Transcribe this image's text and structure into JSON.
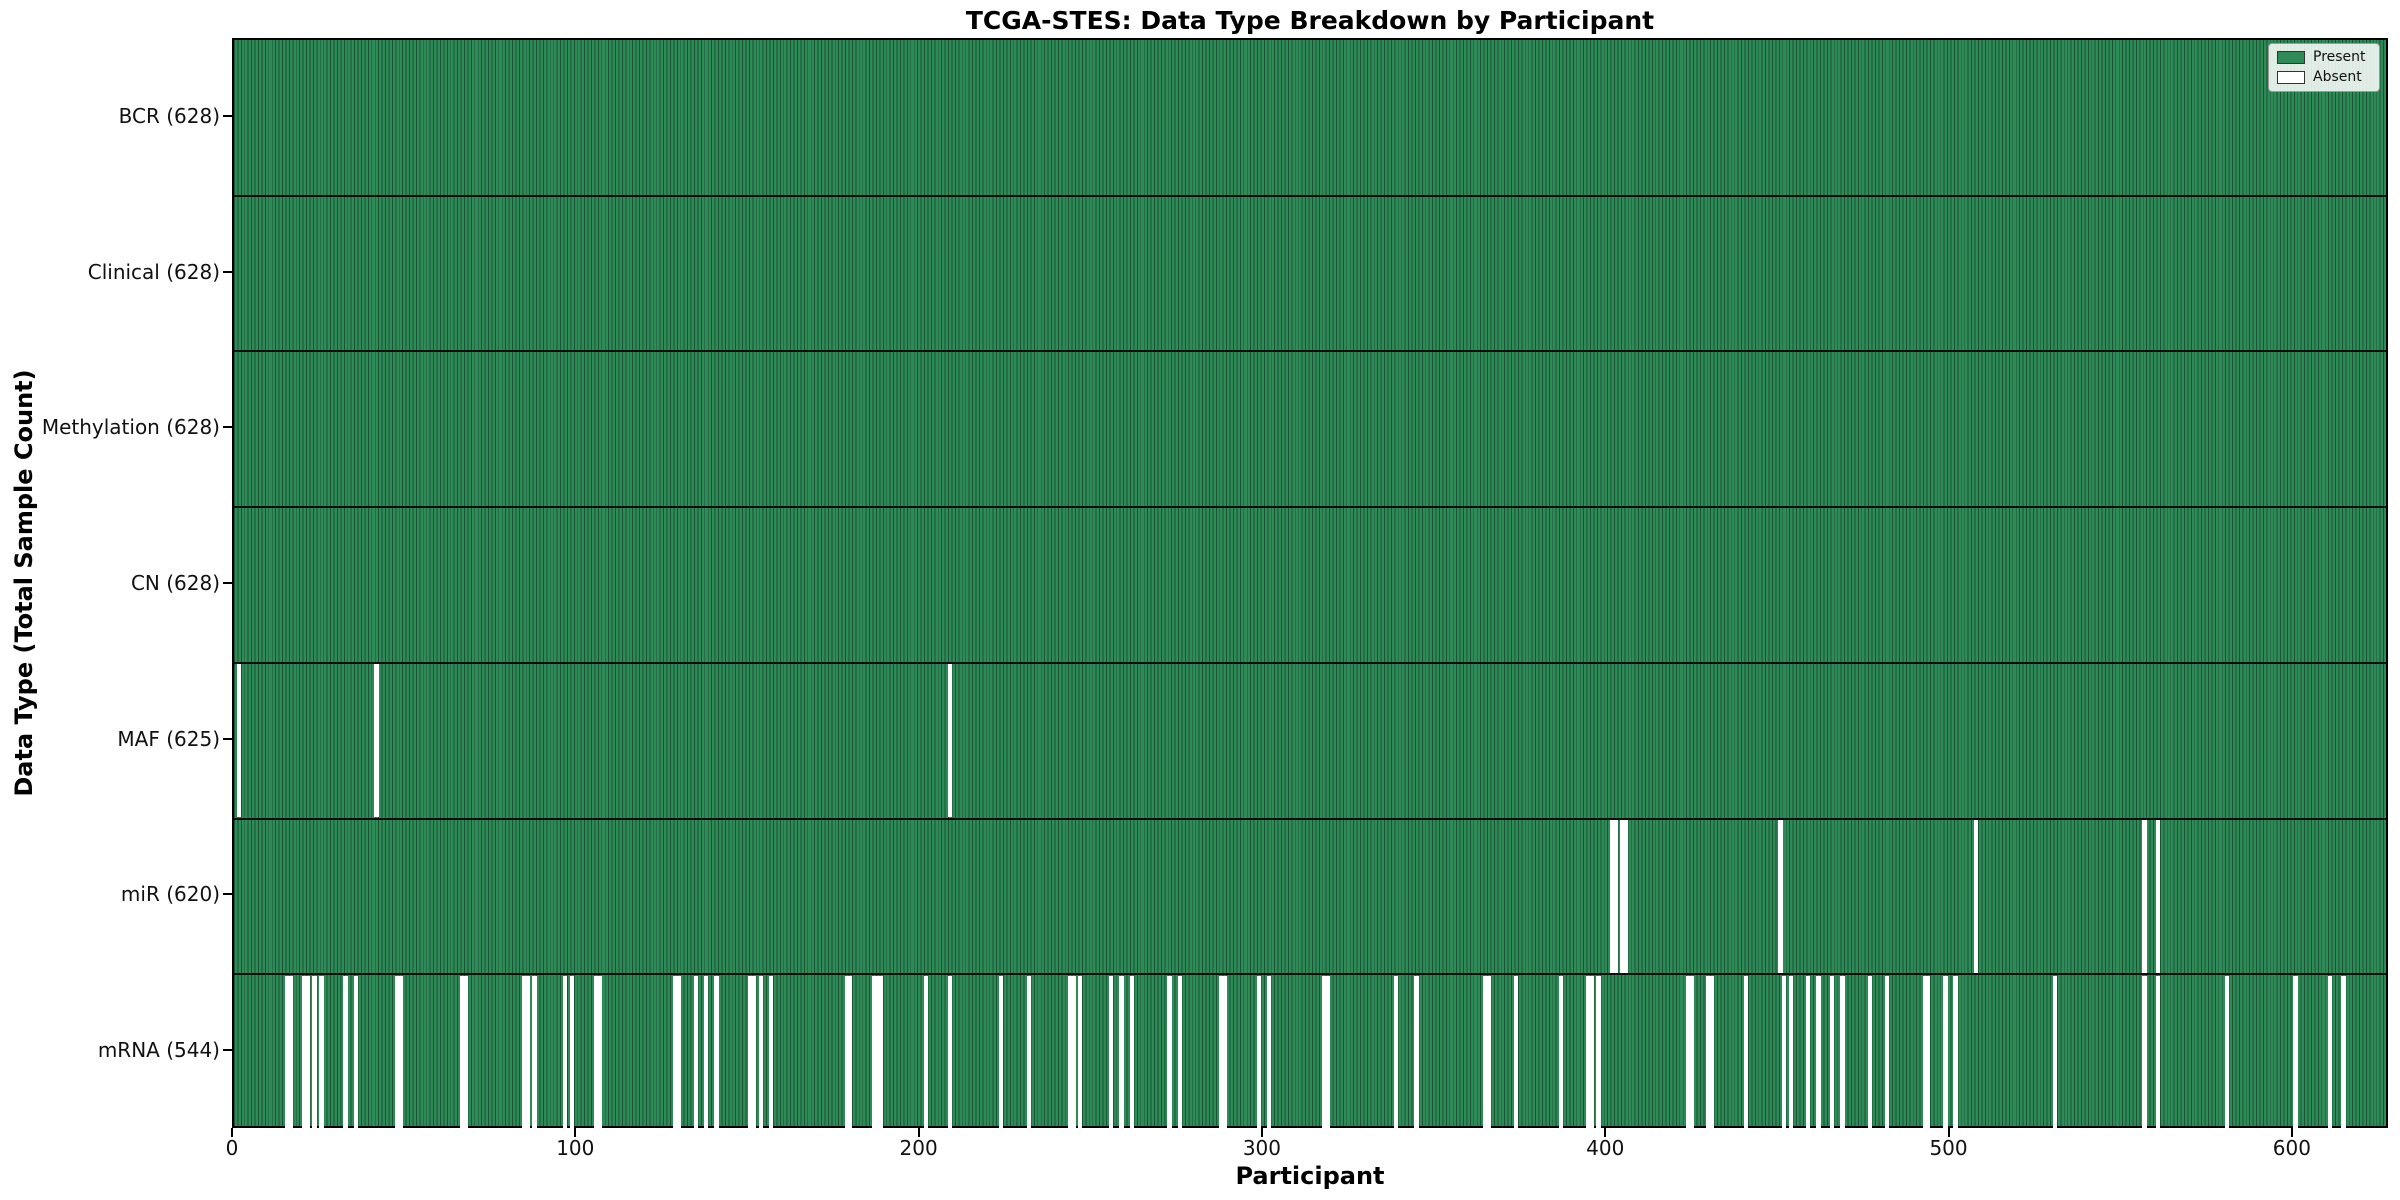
{
  "chart_data": {
    "type": "heatmap",
    "title": "TCGA-STES: Data Type Breakdown by Participant",
    "xlabel": "Participant",
    "ylabel": "Data Type (Total Sample Count)",
    "x_ticks": [
      0,
      100,
      200,
      300,
      400,
      500,
      600
    ],
    "n_participants": 628,
    "xlim": [
      0,
      628
    ],
    "grid": false,
    "legend_position": "upper right",
    "legend": [
      {
        "label": "Present",
        "color": "#2e8b57"
      },
      {
        "label": "Absent",
        "color": "#ffffff"
      }
    ],
    "colors": {
      "present": "#2e8b57",
      "absent": "#ffffff",
      "cell_edge": "#1c4d32",
      "row_divider": "#0d0d0d",
      "plot_border": "#000000"
    },
    "rows": [
      {
        "label": "BCR (628)",
        "data_type": "BCR",
        "present_count": 628,
        "absent_participants": []
      },
      {
        "label": "Clinical (628)",
        "data_type": "Clinical",
        "present_count": 628,
        "absent_participants": []
      },
      {
        "label": "Methylation (628)",
        "data_type": "Methylation",
        "present_count": 628,
        "absent_participants": []
      },
      {
        "label": "CN (628)",
        "data_type": "CN",
        "present_count": 628,
        "absent_participants": []
      },
      {
        "label": "MAF (625)",
        "data_type": "MAF",
        "present_count": 625,
        "absent_participants": [
          1,
          41,
          208
        ]
      },
      {
        "label": "miR (620)",
        "data_type": "miR",
        "present_count": 620,
        "absent_participants": [
          401,
          402,
          404,
          405,
          450,
          507,
          556,
          560
        ]
      },
      {
        "label": "mRNA (544)",
        "data_type": "mRNA",
        "present_count": 544,
        "absent_participants": [
          15,
          16,
          20,
          21,
          23,
          25,
          32,
          35,
          47,
          48,
          66,
          67,
          84,
          85,
          87,
          96,
          98,
          105,
          106,
          128,
          129,
          134,
          137,
          140,
          150,
          151,
          153,
          156,
          178,
          179,
          186,
          187,
          188,
          201,
          208,
          223,
          231,
          243,
          244,
          246,
          255,
          258,
          261,
          272,
          275,
          287,
          288,
          298,
          301,
          317,
          318,
          338,
          344,
          364,
          365,
          373,
          386,
          394,
          395,
          397,
          423,
          424,
          429,
          430,
          440,
          451,
          453,
          458,
          461,
          465,
          468,
          476,
          481,
          492,
          493,
          498,
          501,
          530,
          556,
          560,
          580,
          600,
          610,
          614
        ]
      }
    ]
  }
}
